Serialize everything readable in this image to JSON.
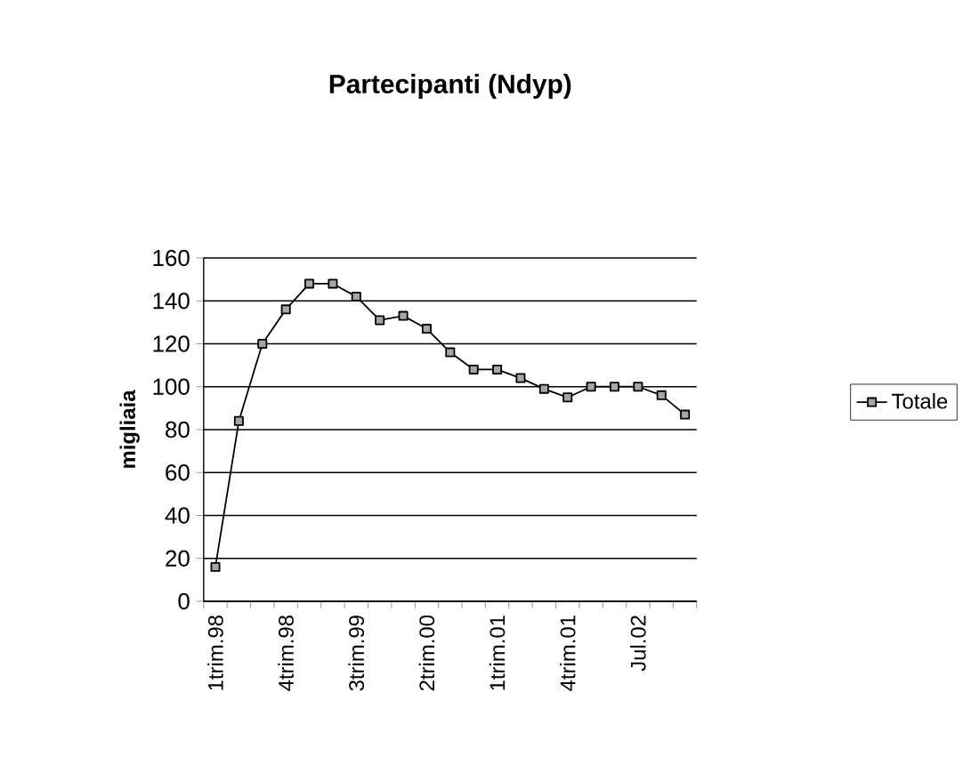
{
  "chart_data": {
    "type": "line",
    "title": "Partecipanti (Ndyp)",
    "ylabel": "migliaia",
    "categories": [
      "1trim.98",
      null,
      null,
      "4trim.98",
      null,
      null,
      "3trim.99",
      null,
      null,
      "2trim.00",
      null,
      null,
      "1trim.01",
      null,
      null,
      "4trim.01",
      null,
      null,
      "Jul.02",
      null,
      null
    ],
    "series": [
      {
        "name": "Totale",
        "color": "#000000",
        "values": [
          16,
          84,
          120,
          136,
          148,
          148,
          142,
          131,
          133,
          127,
          116,
          108,
          108,
          104,
          99,
          95,
          100,
          100,
          100,
          96,
          87
        ]
      }
    ],
    "ylim": [
      0,
      160
    ],
    "yticks": [
      0,
      20,
      40,
      60,
      80,
      100,
      120,
      140,
      160
    ],
    "grid": "y",
    "legend": "right",
    "marker": "square",
    "line_style": "solid"
  }
}
